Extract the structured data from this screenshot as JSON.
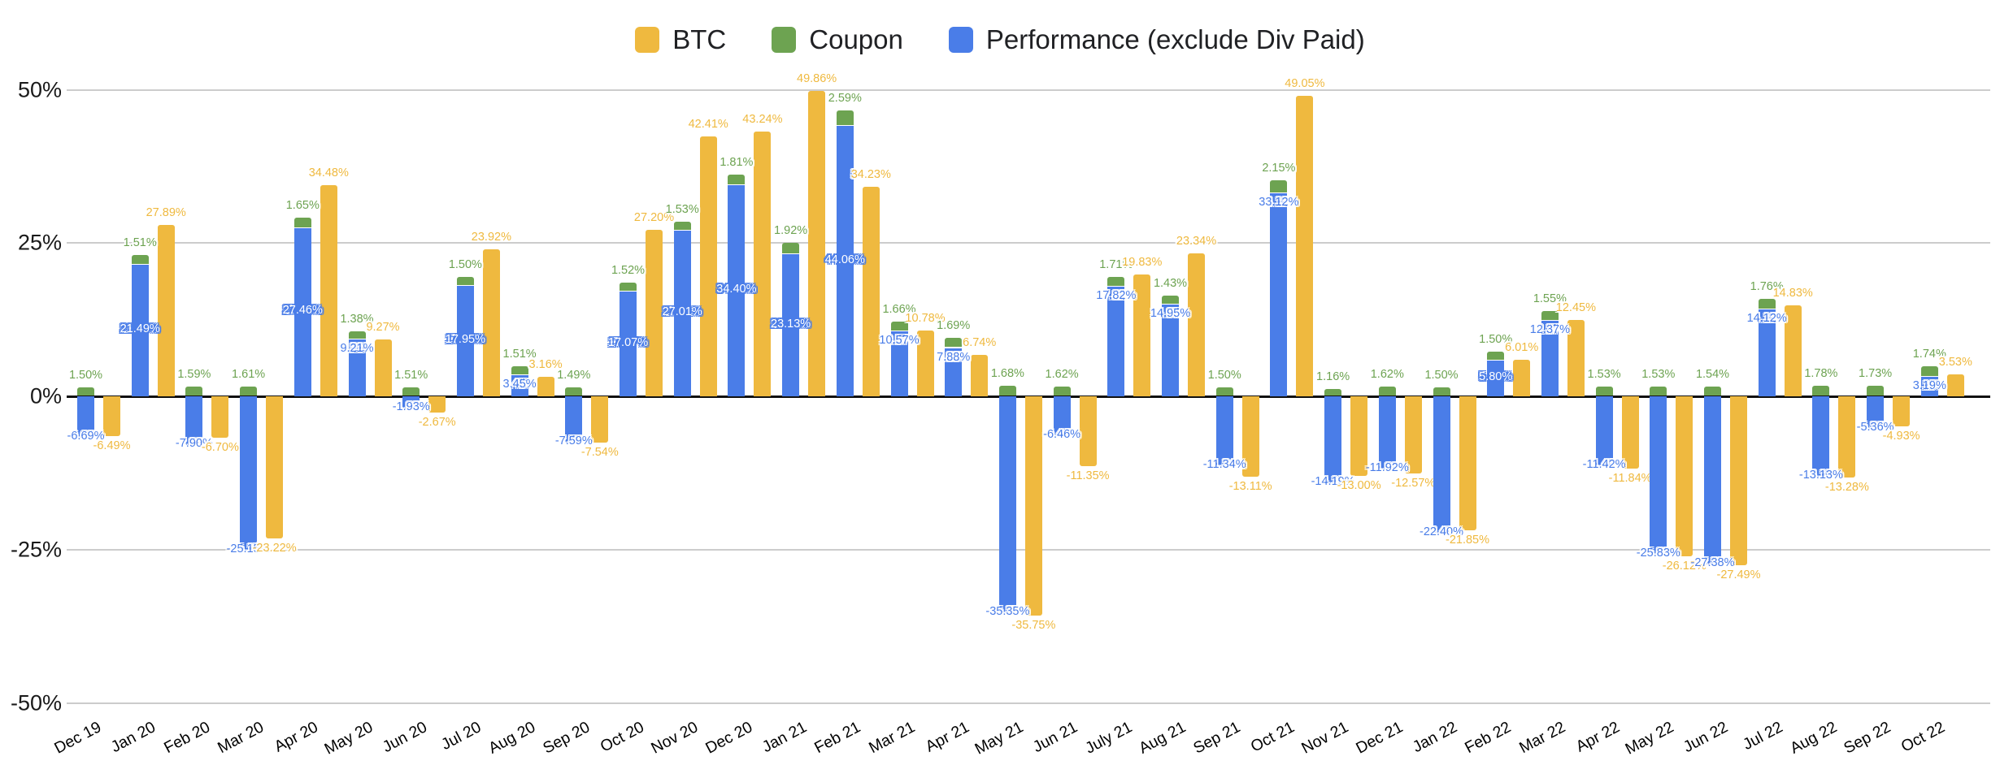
{
  "chart": {
    "background": "#ffffff"
  },
  "legend": {
    "position": "top-center",
    "items": [
      {
        "label": "BTC",
        "color": "#EFB93F"
      },
      {
        "label": "Coupon",
        "color": "#6DA351"
      },
      {
        "label": "Performance (exclude Div Paid)",
        "color": "#4A7DE8"
      }
    ]
  },
  "y_axis": {
    "tick_labels": [
      "50%",
      "25%",
      "0%",
      "-25%",
      "-50%"
    ],
    "tick_values": [
      50,
      25,
      0,
      -25,
      -50
    ]
  },
  "chart_data": {
    "type": "bar",
    "structure": "per month: one stacked column (Performance blue + Coupon green) and one BTC column (yellow)",
    "title": "",
    "xlabel": "",
    "ylabel": "",
    "ylim": [
      -50,
      50
    ],
    "grid": true,
    "legend_position": "top",
    "value_format": "0.00%",
    "categories": [
      "Dec 19",
      "Jan 20",
      "Feb 20",
      "Mar 20",
      "Apr 20",
      "May 20",
      "Jun 20",
      "Jul 20",
      "Aug 20",
      "Sep 20",
      "Oct 20",
      "Nov 20",
      "Dec 20",
      "Jan 21",
      "Feb 21",
      "Mar 21",
      "Apr 21",
      "May 21",
      "Jun 21",
      "July 21",
      "Aug 21",
      "Sep 21",
      "Oct 21",
      "Nov 21",
      "Dec 21",
      "Jan 22",
      "Feb 22",
      "Mar 22",
      "Apr 22",
      "May 22",
      "Jun 22",
      "Jul 22",
      "Aug 22",
      "Sep 22",
      "Oct 22"
    ],
    "series": [
      {
        "name": "BTC",
        "color": "#EFB93F",
        "values": [
          -6.49,
          27.89,
          -6.7,
          -23.22,
          34.48,
          9.27,
          -2.67,
          23.92,
          3.16,
          -7.54,
          27.2,
          42.41,
          43.24,
          49.86,
          34.23,
          10.78,
          6.74,
          -35.75,
          -11.35,
          19.83,
          23.34,
          -13.11,
          49.05,
          -13.0,
          -12.57,
          -21.85,
          6.01,
          12.45,
          -11.84,
          -26.12,
          -27.49,
          14.83,
          -13.28,
          -4.93,
          3.53
        ]
      },
      {
        "name": "Coupon",
        "color": "#6DA351",
        "values": [
          1.5,
          1.51,
          1.59,
          1.61,
          1.65,
          1.38,
          1.51,
          1.5,
          1.51,
          1.49,
          1.52,
          1.53,
          1.81,
          1.92,
          2.59,
          1.66,
          1.69,
          1.68,
          1.62,
          1.71,
          1.43,
          1.5,
          2.15,
          1.16,
          1.62,
          1.5,
          1.5,
          1.55,
          1.53,
          1.53,
          1.54,
          1.76,
          1.78,
          1.73,
          1.74
        ]
      },
      {
        "name": "Performance (exclude Div Paid)",
        "color": "#4A7DE8",
        "values": [
          -6.69,
          21.49,
          -7.9,
          -25.15,
          27.46,
          9.21,
          -1.93,
          17.95,
          3.45,
          -7.59,
          17.07,
          27.01,
          34.4,
          23.13,
          44.06,
          10.57,
          7.88,
          -35.35,
          -6.46,
          17.82,
          14.95,
          -11.34,
          33.12,
          -14.19,
          -11.92,
          -22.4,
          5.8,
          12.37,
          -11.42,
          -25.83,
          -27.38,
          14.12,
          -13.13,
          -5.36,
          3.19
        ]
      }
    ],
    "label_hints": {
      "performance_label_white_inside_indices": [
        1,
        4,
        7,
        10,
        11,
        12,
        13,
        14,
        26
      ]
    }
  }
}
